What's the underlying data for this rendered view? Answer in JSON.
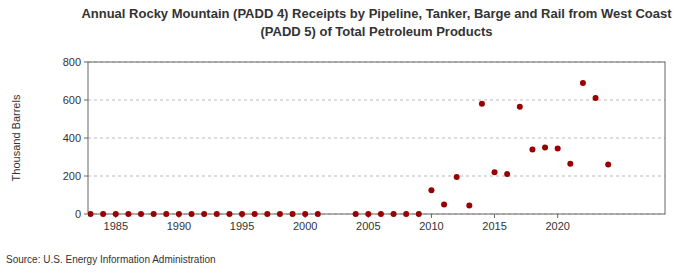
{
  "chart_data": {
    "type": "scatter",
    "title": [
      "Annual Rocky Mountain (PADD 4) Receipts by Pipeline, Tanker, Barge and Rail from West Coast",
      "(PADD 5) of Total Petroleum Products"
    ],
    "y_label": "Thousand Barrels",
    "source": "Source: U.S. Energy Information Administration",
    "x": [
      1983,
      1984,
      1985,
      1986,
      1987,
      1988,
      1989,
      1990,
      1991,
      1992,
      1993,
      1994,
      1995,
      1996,
      1997,
      1998,
      1999,
      2000,
      2001,
      2004,
      2005,
      2006,
      2007,
      2008,
      2009,
      2010,
      2011,
      2012,
      2013,
      2014,
      2015,
      2016,
      2017,
      2018,
      2019,
      2020,
      2021,
      2022,
      2023,
      2024
    ],
    "values": [
      0,
      0,
      0,
      0,
      0,
      0,
      0,
      0,
      0,
      0,
      0,
      0,
      0,
      0,
      0,
      0,
      0,
      0,
      0,
      0,
      0,
      0,
      0,
      0,
      0,
      125,
      50,
      195,
      45,
      580,
      220,
      210,
      565,
      340,
      350,
      345,
      265,
      690,
      610,
      260
    ],
    "color": "#990000",
    "marker": "circle",
    "xlim": [
      1982.8,
      2028.5
    ],
    "xticks": [
      1985,
      1990,
      1995,
      2000,
      2005,
      2010,
      2015,
      2020
    ],
    "ylim": [
      0,
      800
    ],
    "yticks": [
      0,
      200,
      400,
      600,
      800
    ],
    "grid": true
  }
}
